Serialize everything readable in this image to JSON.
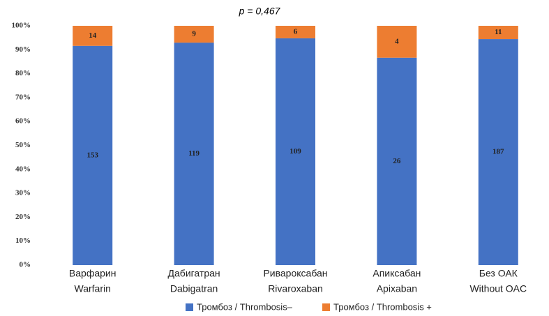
{
  "chart_data": {
    "type": "bar",
    "stacking": "percent",
    "annotation": "p = 0,467",
    "categories": [
      [
        "Варфарин",
        "Warfarin"
      ],
      [
        "Дабигатран",
        "Dabigatran"
      ],
      [
        "Ривароксабан",
        "Rivaroxaban"
      ],
      [
        "Апиксабан",
        "Apixaban"
      ],
      [
        "Без  ОАК",
        "Without OAC"
      ]
    ],
    "series": [
      {
        "name": "Тромбоз / Thrombosis–",
        "color": "#4472c4",
        "values": [
          153,
          119,
          109,
          26,
          187
        ]
      },
      {
        "name": "Тромбоз / Thrombosis +",
        "color": "#ed7d31",
        "values": [
          14,
          9,
          6,
          4,
          11
        ]
      }
    ],
    "ylim": [
      0,
      100
    ],
    "yticks": [
      {
        "value": 0,
        "label": "0%"
      },
      {
        "value": 10,
        "label": "10%"
      },
      {
        "value": 20,
        "label": "20%"
      },
      {
        "value": 30,
        "label": "30%"
      },
      {
        "value": 40,
        "label": "40%"
      },
      {
        "value": 50,
        "label": "50%"
      },
      {
        "value": 60,
        "label": "60%"
      },
      {
        "value": 70,
        "label": "70%"
      },
      {
        "value": 80,
        "label": "80%"
      },
      {
        "value": 90,
        "label": "90%"
      },
      {
        "value": 100,
        "label": "100%"
      }
    ],
    "legend": "bottom"
  }
}
